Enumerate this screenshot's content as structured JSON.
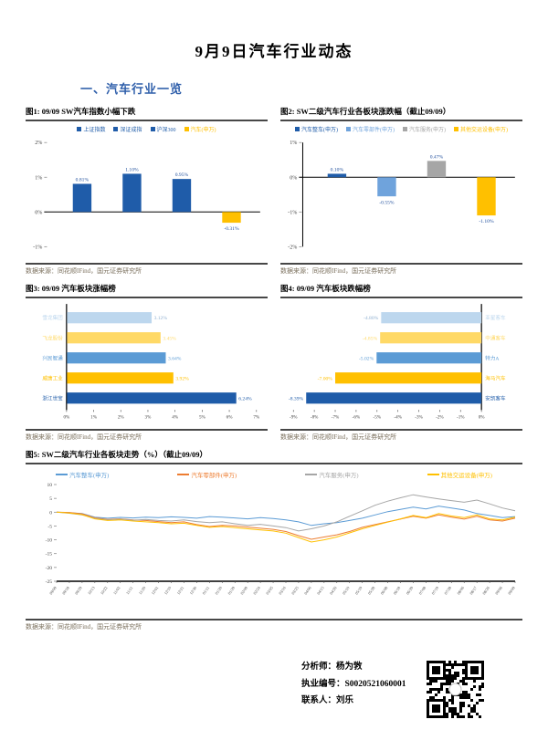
{
  "page": {
    "title": "9月9日汽车行业动态",
    "section_heading": "一、汽车行业一览",
    "source_note": "数据来源：同花顺IFind，国元证券研究所"
  },
  "figures": {
    "fig1": {
      "title": "图1: 09/09  SW汽车指数小幅下跌"
    },
    "fig2": {
      "title": "图2: SW二级汽车行业各板块涨跌幅（截止09/09）"
    },
    "fig3": {
      "title": "图3: 09/09 汽车板块涨幅榜"
    },
    "fig4": {
      "title": "图4: 09/09  汽车板块跌幅榜"
    },
    "fig5": {
      "title": "图5: SW二级汽车行业各板块走势（%）（截止09/09）"
    }
  },
  "footer": {
    "analyst": "分析师：杨为敩",
    "license": "执业编号：S0020521060001",
    "contact": "联系人：刘乐"
  },
  "colors": {
    "dark_blue": "#1F5CA9",
    "light_blue": "#6FA3DC",
    "pale_blue": "#BDD7EE",
    "medium_blue": "#5B9BD5",
    "gray": "#A6A6A6",
    "gold": "#FFC000",
    "light_gold": "#FFD966",
    "orange": "#ED7D31",
    "heading_blue": "#2E5EAA",
    "label_navy": "#1F4E9C"
  },
  "chart_data": [
    {
      "id": "fig1",
      "type": "bar",
      "title": "09/09 SW汽车指数小幅下跌",
      "categories": [
        "上证指数",
        "深证成指",
        "沪深300",
        "汽车(申万)"
      ],
      "values": [
        0.81,
        1.1,
        0.95,
        -0.31
      ],
      "labels": [
        "0.81%",
        "1.10%",
        "0.95%",
        "-0.31%"
      ],
      "colors": [
        "#1F5CA9",
        "#1F5CA9",
        "#1F5CA9",
        "#FFC000"
      ],
      "ylim": [
        -1,
        2
      ],
      "ytick_values": [
        2,
        1,
        0,
        -1
      ],
      "ytick_labels": [
        "2%",
        "1%",
        "0%",
        "-1%"
      ],
      "yaxis_line": false,
      "legend_position": "top"
    },
    {
      "id": "fig2",
      "type": "bar",
      "title": "SW二级汽车行业各板块涨跌幅（截止09/09）",
      "categories": [
        "汽车整车(申万)",
        "汽车零部件(申万)",
        "汽车服务(申万)",
        "其他交运设备(申万)"
      ],
      "values": [
        0.1,
        -0.55,
        0.47,
        -1.1
      ],
      "labels": [
        "0.10%",
        "-0.55%",
        "0.47%",
        "-1.10%"
      ],
      "colors": [
        "#1F5CA9",
        "#6FA3DC",
        "#A6A6A6",
        "#FFC000"
      ],
      "ylim": [
        -2,
        1
      ],
      "ytick_values": [
        1,
        0,
        -1,
        -2
      ],
      "ytick_labels": [
        "1%",
        "0%",
        "-1%",
        "-2%"
      ],
      "yaxis_line": true,
      "legend_position": "top"
    },
    {
      "id": "fig3",
      "type": "barh",
      "title": "09/09 汽车板块涨幅榜",
      "categories": [
        "雪龙集团",
        "飞龙股份",
        "兴民智通",
        "威唐工业",
        "浙江世宝"
      ],
      "values": [
        3.12,
        3.45,
        3.64,
        3.92,
        6.24
      ],
      "labels": [
        "3.12%",
        "3.45%",
        "3.64%",
        "3.92%",
        "6.24%"
      ],
      "colors": [
        "#BDD7EE",
        "#FFD966",
        "#5B9BD5",
        "#FFC000",
        "#1F5CA9"
      ],
      "xlim": [
        0,
        7
      ],
      "xtick_values": [
        0,
        1,
        2,
        3,
        4,
        5,
        6,
        7
      ],
      "xtick_labels": [
        "0%",
        "1%",
        "2%",
        "3%",
        "4%",
        "5%",
        "6%",
        "7%"
      ]
    },
    {
      "id": "fig4",
      "type": "barh_neg",
      "title": "09/09 汽车板块跌幅榜",
      "categories": [
        "亚星客车",
        "中通客车",
        "特力A",
        "海马汽车",
        "安凯客车"
      ],
      "values": [
        -4.8,
        -4.85,
        -5.02,
        -7.0,
        -8.39
      ],
      "labels": [
        "-4.80%",
        "-4.85%",
        "-5.02%",
        "-7.00%",
        "-8.39%"
      ],
      "colors": [
        "#BDD7EE",
        "#FFD966",
        "#5B9BD5",
        "#FFC000",
        "#1F5CA9"
      ],
      "xlim": [
        -9,
        0
      ],
      "xtick_values": [
        -9,
        -8,
        -7,
        -6,
        -5,
        -4,
        -3,
        -2,
        -1,
        0
      ],
      "xtick_labels": [
        "-9%",
        "-8%",
        "-7%",
        "-6%",
        "-5%",
        "-4%",
        "-3%",
        "-2%",
        "-1%",
        "0%"
      ]
    },
    {
      "id": "fig5",
      "type": "line",
      "title": "SW二级汽车行业各板块走势（%）（截止09/09）",
      "x": [
        "09/09",
        "09/18",
        "09/29",
        "10/13",
        "10/22",
        "11/02",
        "11/11",
        "11/20",
        "12/01",
        "12/10",
        "12/21",
        "12/30",
        "01/11",
        "01/20",
        "01/29",
        "02/09",
        "02/24",
        "03/05",
        "03/16",
        "03/25",
        "04/06",
        "04/15",
        "04/26",
        "05/10",
        "05/19",
        "05/28",
        "06/08",
        "06/18",
        "06/29",
        "07/08",
        "07/19",
        "07/28",
        "08/06",
        "08/17",
        "08/26",
        "09/06",
        "09/09"
      ],
      "ylim": [
        -25,
        10
      ],
      "ytick_values": [
        10,
        5,
        0,
        -5,
        -10,
        -15,
        -20,
        -25
      ],
      "ytick_labels": [
        "10",
        "5",
        "0",
        "-5",
        "-10",
        "-15",
        "-20",
        "-25"
      ],
      "legend_position": "top",
      "series": [
        {
          "name": "汽车整车(申万)",
          "color": "#5B9BD5",
          "values": [
            0,
            -0.2,
            -0.5,
            -1.8,
            -2.2,
            -1.9,
            -2.1,
            -1.8,
            -2.0,
            -1.7,
            -1.9,
            -2.2,
            -1.6,
            -1.8,
            -2.1,
            -2.4,
            -2.0,
            -2.3,
            -2.8,
            -3.5,
            -4.8,
            -4.2,
            -3.8,
            -3.0,
            -2.2,
            -1.0,
            0.2,
            1.0,
            1.8,
            1.2,
            2.2,
            1.5,
            0.8,
            -0.5,
            -1.2,
            -2.0,
            -1.6
          ]
        },
        {
          "name": "汽车零部件(申万)",
          "color": "#ED7D31",
          "values": [
            0,
            -0.1,
            -0.6,
            -2.0,
            -2.6,
            -2.4,
            -2.8,
            -3.0,
            -3.4,
            -3.8,
            -3.5,
            -4.5,
            -5.2,
            -4.8,
            -5.0,
            -5.4,
            -5.8,
            -6.2,
            -7.0,
            -8.5,
            -9.8,
            -9.0,
            -8.2,
            -7.0,
            -5.5,
            -4.5,
            -3.5,
            -2.5,
            -1.5,
            -2.2,
            -1.0,
            -1.8,
            -2.5,
            -1.5,
            -2.8,
            -3.2,
            -2.2
          ]
        },
        {
          "name": "汽车服务(申万)",
          "color": "#A6A6A6",
          "values": [
            0,
            -0.4,
            -1.0,
            -2.2,
            -2.8,
            -2.5,
            -2.9,
            -2.6,
            -3.0,
            -3.2,
            -2.8,
            -3.4,
            -3.8,
            -3.5,
            -4.2,
            -4.8,
            -4.4,
            -5.0,
            -5.6,
            -6.8,
            -6.0,
            -5.0,
            -3.5,
            -1.5,
            0.5,
            2.5,
            4.0,
            5.2,
            6.3,
            5.5,
            4.8,
            4.2,
            3.6,
            4.4,
            3.0,
            1.5,
            0.5
          ]
        },
        {
          "name": "其他交运设备(申万)",
          "color": "#FFC000",
          "values": [
            0,
            -0.3,
            -0.9,
            -2.4,
            -3.0,
            -2.8,
            -3.2,
            -3.5,
            -3.8,
            -4.2,
            -4.0,
            -4.8,
            -5.5,
            -5.2,
            -5.6,
            -6.0,
            -6.4,
            -6.8,
            -7.6,
            -9.2,
            -10.8,
            -10.0,
            -9.0,
            -7.5,
            -6.0,
            -4.8,
            -3.6,
            -2.4,
            -1.2,
            -2.0,
            -0.5,
            -1.4,
            -2.0,
            -1.0,
            -2.4,
            -2.8,
            -1.8
          ]
        }
      ]
    }
  ]
}
